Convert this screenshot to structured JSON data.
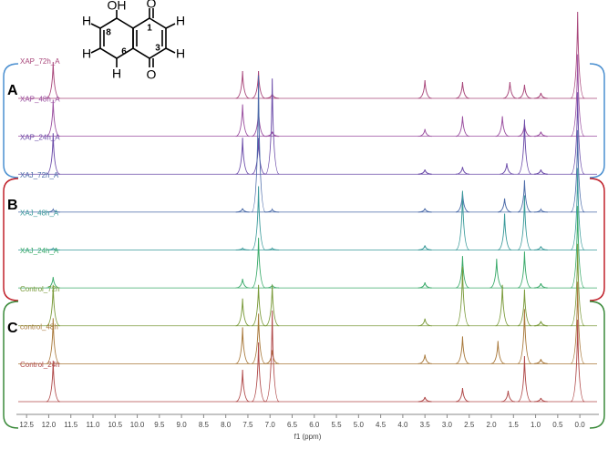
{
  "chart_data": {
    "type": "stacked-spectrum",
    "x_label": "f1 (ppm)",
    "xlim": [
      12.73,
      -0.43
    ],
    "xticks": [
      {
        "value": 12.5,
        "label": "12.5"
      },
      {
        "value": 12,
        "label": "12.0"
      },
      {
        "value": 11.5,
        "label": "11.5"
      },
      {
        "value": 11,
        "label": "11.0"
      },
      {
        "value": 10.5,
        "label": "10.5"
      },
      {
        "value": 10,
        "label": "10.0"
      },
      {
        "value": 9.5,
        "label": "9.5"
      },
      {
        "value": 9,
        "label": "9.0"
      },
      {
        "value": 8.5,
        "label": "8.5"
      },
      {
        "value": 8,
        "label": "8.0"
      },
      {
        "value": 7.5,
        "label": "7.5"
      },
      {
        "value": 7,
        "label": "7.0"
      },
      {
        "value": 6.5,
        "label": "6.5"
      },
      {
        "value": 6,
        "label": "6.0"
      },
      {
        "value": 5.5,
        "label": "5.5"
      },
      {
        "value": 5,
        "label": "5.0"
      },
      {
        "value": 4.5,
        "label": "4.5"
      },
      {
        "value": 4,
        "label": "4.0"
      },
      {
        "value": 3.5,
        "label": "3.5"
      },
      {
        "value": 3,
        "label": "3.0"
      },
      {
        "value": 2.5,
        "label": "2.5"
      },
      {
        "value": 2,
        "label": "2.0"
      },
      {
        "value": 1.5,
        "label": "1.5"
      },
      {
        "value": 1,
        "label": "1.0"
      },
      {
        "value": 0.5,
        "label": "0.5"
      },
      {
        "value": 0,
        "label": "0.0"
      }
    ],
    "series": [
      {
        "name": "XAP_72h_A",
        "color": "#a8467a",
        "x": [
          11.9,
          7.62,
          7.26,
          6.95,
          3.5,
          2.65,
          1.58,
          1.25,
          0.88,
          0.05
        ],
        "values": [
          40,
          30,
          30,
          5,
          20,
          18,
          18,
          15,
          6,
          95
        ]
      },
      {
        "name": "XAP_48h_A",
        "color": "#9a4fa0",
        "x": [
          11.9,
          7.62,
          7.26,
          6.95,
          3.5,
          2.65,
          1.75,
          1.25,
          0.88,
          0.05
        ],
        "values": [
          40,
          35,
          30,
          5,
          8,
          22,
          22,
          14,
          5,
          90
        ]
      },
      {
        "name": "XAP_24h_A",
        "color": "#6a4aa8",
        "x": [
          11.9,
          7.62,
          7.26,
          6.95,
          3.5,
          2.65,
          1.65,
          1.25,
          0.88,
          0.05
        ],
        "values": [
          45,
          40,
          40,
          105,
          5,
          8,
          12,
          60,
          5,
          90
        ]
      },
      {
        "name": "XAJ_72h_A",
        "color": "#4a6aa8",
        "x": [
          11.9,
          7.62,
          7.26,
          6.95,
          3.5,
          2.65,
          1.7,
          1.25,
          0.88,
          0.05
        ],
        "values": [
          3,
          4,
          150,
          3,
          4,
          22,
          15,
          35,
          3,
          90
        ]
      },
      {
        "name": "XAJ_48h_A",
        "color": "#3a9a9a",
        "x": [
          11.9,
          7.62,
          7.26,
          6.95,
          3.5,
          2.65,
          1.7,
          1.25,
          0.88,
          0.05
        ],
        "values": [
          2,
          2,
          70,
          2,
          5,
          65,
          40,
          60,
          4,
          90
        ]
      },
      {
        "name": "XAJ_24h_A",
        "color": "#3aaa6a",
        "x": [
          11.9,
          7.62,
          7.26,
          6.95,
          3.5,
          2.65,
          1.88,
          1.25,
          0.88,
          0.05
        ],
        "values": [
          12,
          10,
          55,
          3,
          6,
          35,
          32,
          40,
          5,
          90
        ]
      },
      {
        "name": "Control_72h",
        "color": "#7a9a3a",
        "x": [
          11.9,
          7.62,
          7.26,
          6.95,
          3.5,
          2.65,
          1.75,
          1.25,
          0.88,
          0.05
        ],
        "values": [
          45,
          30,
          45,
          45,
          8,
          65,
          45,
          40,
          5,
          90
        ]
      },
      {
        "name": "control_48h",
        "color": "#a8783a",
        "x": [
          11.9,
          7.62,
          7.26,
          6.95,
          3.5,
          2.65,
          1.85,
          1.25,
          0.88,
          0.05
        ],
        "values": [
          50,
          40,
          55,
          15,
          10,
          30,
          25,
          60,
          5,
          90
        ]
      },
      {
        "name": "Control_24h",
        "color": "#b04a4a",
        "x": [
          11.9,
          7.62,
          7.26,
          6.95,
          3.5,
          2.65,
          1.62,
          1.25,
          0.88,
          0.05
        ],
        "values": [
          45,
          35,
          65,
          100,
          5,
          15,
          12,
          50,
          4,
          90
        ]
      }
    ],
    "groups": [
      {
        "label": "A",
        "color": "#4a8fd0"
      },
      {
        "label": "B",
        "color": "#c0202a"
      },
      {
        "label": "C",
        "color": "#3a8a3a"
      }
    ],
    "structure": {
      "labels": [
        "OH",
        "O",
        "O",
        "H",
        "H",
        "H",
        "H",
        "8",
        "1",
        "3",
        "6"
      ]
    }
  }
}
